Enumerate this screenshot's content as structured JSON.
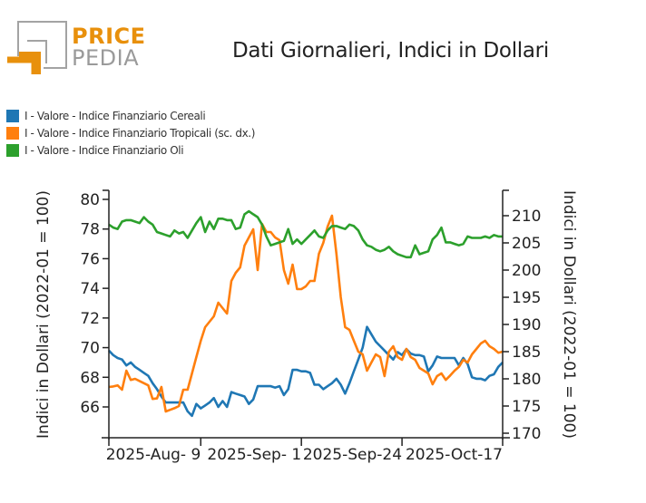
{
  "logo": {
    "line1": "PRICE",
    "line2": "PEDIA",
    "colors": {
      "orange": "#e8900c",
      "gray": "#9a9a9a"
    }
  },
  "chart_data": {
    "type": "line",
    "title": "Dati Giornalieri, Indici in Dollari",
    "ylabel_left": "Indici in Dollari (2022-01 = 100)",
    "ylabel_right": "Indici in Dollari (2022-01 = 100)",
    "ylim_left": [
      64.2,
      80.8
    ],
    "ylim_right": [
      169,
      213.5
    ],
    "yticks_left": [
      66,
      68,
      70,
      72,
      74,
      76,
      78,
      80
    ],
    "yticks_right": [
      170,
      175,
      180,
      185,
      190,
      195,
      200,
      205,
      210
    ],
    "xlim": [
      0,
      90
    ],
    "xticks": [
      {
        "x": 21,
        "label": "2025-Aug- 9"
      },
      {
        "x": 44,
        "label": "2025-Sep- 1"
      },
      {
        "x": 67,
        "label": "2025-Sep-24"
      },
      {
        "x": 90,
        "label": "2025-Oct-17"
      }
    ],
    "grid": false,
    "legend_position": "top-left",
    "series": [
      {
        "name": "I - Valore - Indice Finanziario Cereali",
        "axis": "left",
        "color": "#1f77b4",
        "x": [
          0,
          1,
          2,
          3,
          4,
          5,
          6,
          7,
          8,
          9,
          10,
          11,
          12,
          13,
          14,
          15,
          16,
          17,
          18,
          19,
          20,
          21,
          22,
          23,
          24,
          25,
          26,
          27,
          28,
          29,
          30,
          31,
          32,
          33,
          34,
          35,
          36,
          37,
          38,
          39,
          40,
          41,
          42,
          43,
          44,
          45,
          46,
          47,
          48,
          49,
          50,
          51,
          52,
          53,
          54,
          55,
          56,
          57,
          58,
          59,
          60,
          61,
          62,
          63,
          64,
          65,
          66,
          67,
          68,
          69,
          70,
          71,
          72,
          73,
          74,
          75,
          76,
          77,
          78,
          79,
          80,
          81,
          82,
          83,
          84,
          85,
          86,
          87,
          88,
          89,
          90
        ],
        "values": [
          69.8,
          69.5,
          69.3,
          69.2,
          68.8,
          69.0,
          68.7,
          68.5,
          68.3,
          68.1,
          67.6,
          67.2,
          66.7,
          66.3,
          66.3,
          66.3,
          66.3,
          66.3,
          65.7,
          65.4,
          66.2,
          65.9,
          66.1,
          66.3,
          66.6,
          66.0,
          66.4,
          66.0,
          67.0,
          66.9,
          66.8,
          66.7,
          66.2,
          66.5,
          67.4,
          67.4,
          67.4,
          67.4,
          67.3,
          67.4,
          66.8,
          67.2,
          68.5,
          68.5,
          68.4,
          68.4,
          68.3,
          67.5,
          67.5,
          67.2,
          67.4,
          67.6,
          67.9,
          67.5,
          66.9,
          67.6,
          68.4,
          69.2,
          70.0,
          71.4,
          70.9,
          70.4,
          70.1,
          69.8,
          69.5,
          69.2,
          69.7,
          69.5,
          69.9,
          69.6,
          69.5,
          69.5,
          69.4,
          68.4,
          68.8,
          69.4,
          69.3,
          69.3,
          69.3,
          69.3,
          68.8,
          69.3,
          68.9,
          68.0,
          67.9,
          67.9,
          67.8,
          68.1,
          68.2,
          68.7,
          69.0
        ]
      },
      {
        "name": "I - Valore - Indice Finanziario Tropicali (sc. dx.)",
        "axis": "right",
        "color": "#ff7f0e",
        "x": [
          0,
          1,
          2,
          3,
          4,
          5,
          6,
          7,
          8,
          9,
          10,
          11,
          12,
          13,
          14,
          15,
          16,
          17,
          18,
          19,
          20,
          21,
          22,
          23,
          24,
          25,
          26,
          27,
          28,
          29,
          30,
          31,
          32,
          33,
          34,
          35,
          36,
          37,
          38,
          39,
          40,
          41,
          42,
          43,
          44,
          45,
          46,
          47,
          48,
          49,
          50,
          51,
          52,
          53,
          54,
          55,
          56,
          57,
          58,
          59,
          60,
          61,
          62,
          63,
          64,
          65,
          66,
          67,
          68,
          69,
          70,
          71,
          72,
          73,
          74,
          75,
          76,
          77,
          78,
          79,
          80,
          81,
          82,
          83,
          84,
          85,
          86,
          87,
          88,
          89,
          90
        ],
        "values": [
          178.5,
          178.6,
          178.8,
          178.0,
          181.5,
          179.8,
          180.0,
          179.6,
          179.2,
          178.8,
          176.3,
          176.4,
          178.5,
          174.0,
          174.3,
          174.6,
          175.0,
          178.0,
          178.0,
          181.0,
          184.0,
          187.0,
          189.5,
          190.5,
          191.5,
          194.0,
          193.0,
          192.0,
          198.0,
          199.5,
          200.5,
          204.5,
          206.0,
          207.5,
          200.0,
          208.5,
          207.0,
          207.0,
          206.0,
          205.5,
          200.0,
          197.5,
          201.0,
          196.5,
          196.5,
          197.0,
          198.0,
          198.0,
          203.0,
          205.0,
          208.0,
          210.0,
          203.0,
          195.0,
          189.5,
          189.0,
          187.0,
          185.0,
          184.5,
          181.5,
          183.0,
          184.5,
          184.0,
          180.5,
          185.0,
          186.0,
          184.0,
          183.5,
          185.5,
          184.0,
          183.5,
          182.0,
          181.5,
          181.0,
          179.0,
          180.5,
          181.0,
          179.8,
          180.6,
          181.5,
          182.2,
          183.5,
          183.0,
          184.5,
          185.5,
          186.5,
          187.0,
          186.0,
          185.5,
          184.8,
          185.0
        ]
      },
      {
        "name": "I - Valore - Indice Finanziario Oli",
        "axis": "left",
        "color": "#2ca02c",
        "x": [
          0,
          1,
          2,
          3,
          4,
          5,
          6,
          7,
          8,
          9,
          10,
          11,
          12,
          13,
          14,
          15,
          16,
          17,
          18,
          19,
          20,
          21,
          22,
          23,
          24,
          25,
          26,
          27,
          28,
          29,
          30,
          31,
          32,
          33,
          34,
          35,
          36,
          37,
          38,
          39,
          40,
          41,
          42,
          43,
          44,
          45,
          46,
          47,
          48,
          49,
          50,
          51,
          52,
          53,
          54,
          55,
          56,
          57,
          58,
          59,
          60,
          61,
          62,
          63,
          64,
          65,
          66,
          67,
          68,
          69,
          70,
          71,
          72,
          73,
          74,
          75,
          76,
          77,
          78,
          79,
          80,
          81,
          82,
          83,
          84,
          85,
          86,
          87,
          88,
          89,
          90
        ],
        "values": [
          78.3,
          78.1,
          78.0,
          78.5,
          78.6,
          78.6,
          78.5,
          78.4,
          78.8,
          78.5,
          78.3,
          77.8,
          77.7,
          77.6,
          77.5,
          77.9,
          77.7,
          77.8,
          77.4,
          77.9,
          78.4,
          78.8,
          77.8,
          78.5,
          78.0,
          78.7,
          78.7,
          78.6,
          78.6,
          78.0,
          78.1,
          79.0,
          79.2,
          79.0,
          78.8,
          78.3,
          77.5,
          76.9,
          77.0,
          77.1,
          77.2,
          78.0,
          77.0,
          77.3,
          77.0,
          77.3,
          77.6,
          77.9,
          77.5,
          77.4,
          77.9,
          78.2,
          78.2,
          78.1,
          78.0,
          78.3,
          78.2,
          77.9,
          77.3,
          76.9,
          76.8,
          76.6,
          76.5,
          76.6,
          76.8,
          76.5,
          76.3,
          76.2,
          76.1,
          76.1,
          76.9,
          76.3,
          76.4,
          76.5,
          77.3,
          77.6,
          78.1,
          77.1,
          77.1,
          77.0,
          76.9,
          77.0,
          77.5,
          77.4,
          77.4,
          77.4,
          77.5,
          77.4,
          77.6,
          77.5,
          77.5
        ]
      }
    ]
  }
}
